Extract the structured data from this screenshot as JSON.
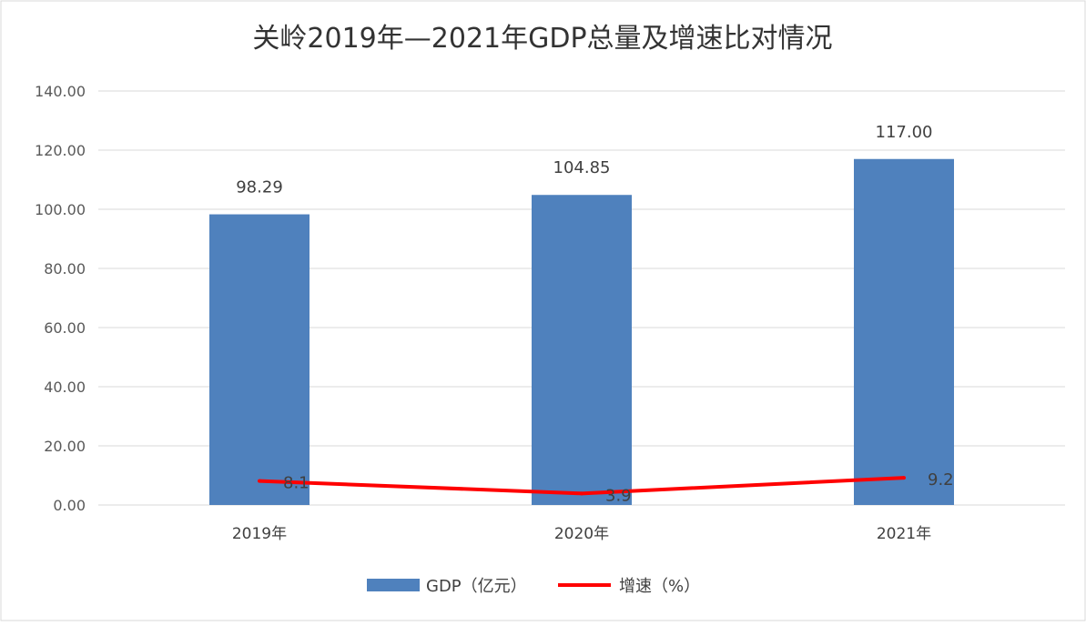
{
  "chart_data": {
    "type": "bar",
    "title": "关岭2019年—2021年GDP总量及增速比对情况",
    "categories": [
      "2019年",
      "2020年",
      "2021年"
    ],
    "ylim": [
      0,
      140
    ],
    "yticks": [
      "0.00",
      "20.00",
      "40.00",
      "60.00",
      "80.00",
      "100.00",
      "120.00",
      "140.00"
    ],
    "grid": true,
    "legend_position": "bottom",
    "series": [
      {
        "name": "GDP（亿元）",
        "kind": "bar",
        "color": "#4F81BD",
        "values": [
          98.29,
          104.85,
          117.0
        ],
        "labels": [
          "98.29",
          "104.85",
          "117.00"
        ]
      },
      {
        "name": "增速（%）",
        "kind": "line",
        "color": "#FF0000",
        "values": [
          8.1,
          3.9,
          9.2
        ],
        "labels": [
          "8.1",
          "3.9",
          "9.2"
        ]
      }
    ]
  }
}
